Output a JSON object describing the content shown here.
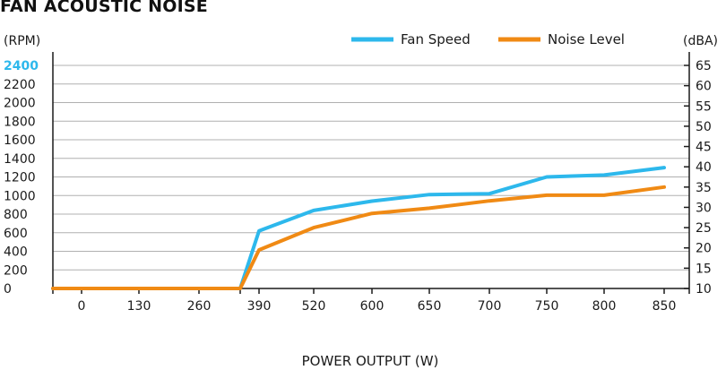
{
  "chart_data": {
    "type": "line",
    "title": "FAN ACOUSTIC NOISE",
    "xlabel": "POWER OUTPUT (W)",
    "ylabel_left": "(RPM)",
    "ylabel_right": "(dBA)",
    "categories": [
      "",
      "0",
      "130",
      "260",
      "",
      "390",
      "520",
      "600",
      "650",
      "700",
      "750",
      "800",
      "850"
    ],
    "x_tick_labels": [
      "0",
      "130",
      "260",
      "390",
      "520",
      "600",
      "650",
      "700",
      "750",
      "800",
      "850"
    ],
    "y_left_ticks": [
      "0",
      "200",
      "400",
      "600",
      "800",
      "1000",
      "1200",
      "1400",
      "1600",
      "1800",
      "2000",
      "2200",
      "2400"
    ],
    "y_left_highlight": "2400",
    "y_right_ticks": [
      "10",
      "15",
      "20",
      "25",
      "30",
      "35",
      "40",
      "45",
      "50",
      "55",
      "60",
      "65"
    ],
    "ylim_left": [
      0,
      2400
    ],
    "ylim_right": [
      10,
      65
    ],
    "grid": true,
    "legend_placement": "top-right",
    "series": [
      {
        "name": "Fan Speed",
        "axis": "left",
        "color": "#2db8ec",
        "values": [
          0,
          0,
          0,
          0,
          0,
          620,
          840,
          940,
          1010,
          1020,
          1200,
          1220,
          1300
        ]
      },
      {
        "name": "Noise Level",
        "axis": "right",
        "color": "#f08a14",
        "values": [
          10,
          10,
          10,
          10,
          10,
          19.5,
          25,
          28.5,
          29.8,
          31.6,
          33,
          33,
          35
        ]
      }
    ]
  },
  "colors": {
    "highlight": "#2db8ec",
    "grid": "#b0b0b0",
    "axis": "#1a1a1a"
  }
}
